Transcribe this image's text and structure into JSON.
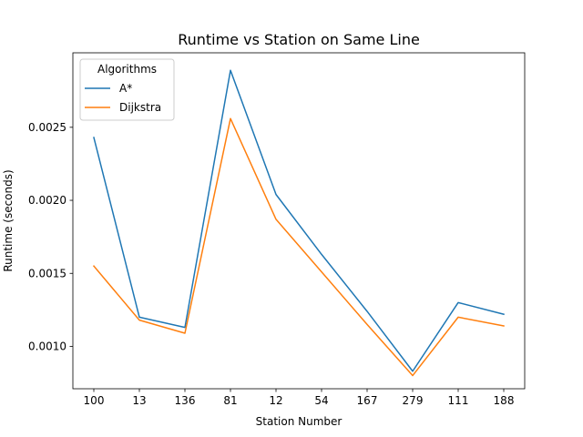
{
  "chart_data": {
    "type": "line",
    "title": "Runtime vs Station on Same Line",
    "xlabel": "Station Number",
    "ylabel": "Runtime (seconds)",
    "categories": [
      "100",
      "13",
      "136",
      "81",
      "12",
      "54",
      "167",
      "279",
      "111",
      "188"
    ],
    "yticks": [
      "0.0010",
      "0.0015",
      "0.0020",
      "0.0025"
    ],
    "ylim": [
      0.00071,
      0.00301
    ],
    "legend": {
      "title": "Algorithms",
      "placement": "upper left"
    },
    "grid": false,
    "series": [
      {
        "name": "A*",
        "color": "#1f77b4",
        "values": [
          0.00243,
          0.0012,
          0.00113,
          0.00289,
          0.00204,
          0.00163,
          0.00124,
          0.00083,
          0.0013,
          0.00122
        ]
      },
      {
        "name": "Dijkstra",
        "color": "#ff7f0e",
        "values": [
          0.00155,
          0.00118,
          0.00109,
          0.00256,
          0.00187,
          0.00151,
          0.00115,
          0.0008,
          0.0012,
          0.00114
        ]
      }
    ]
  }
}
